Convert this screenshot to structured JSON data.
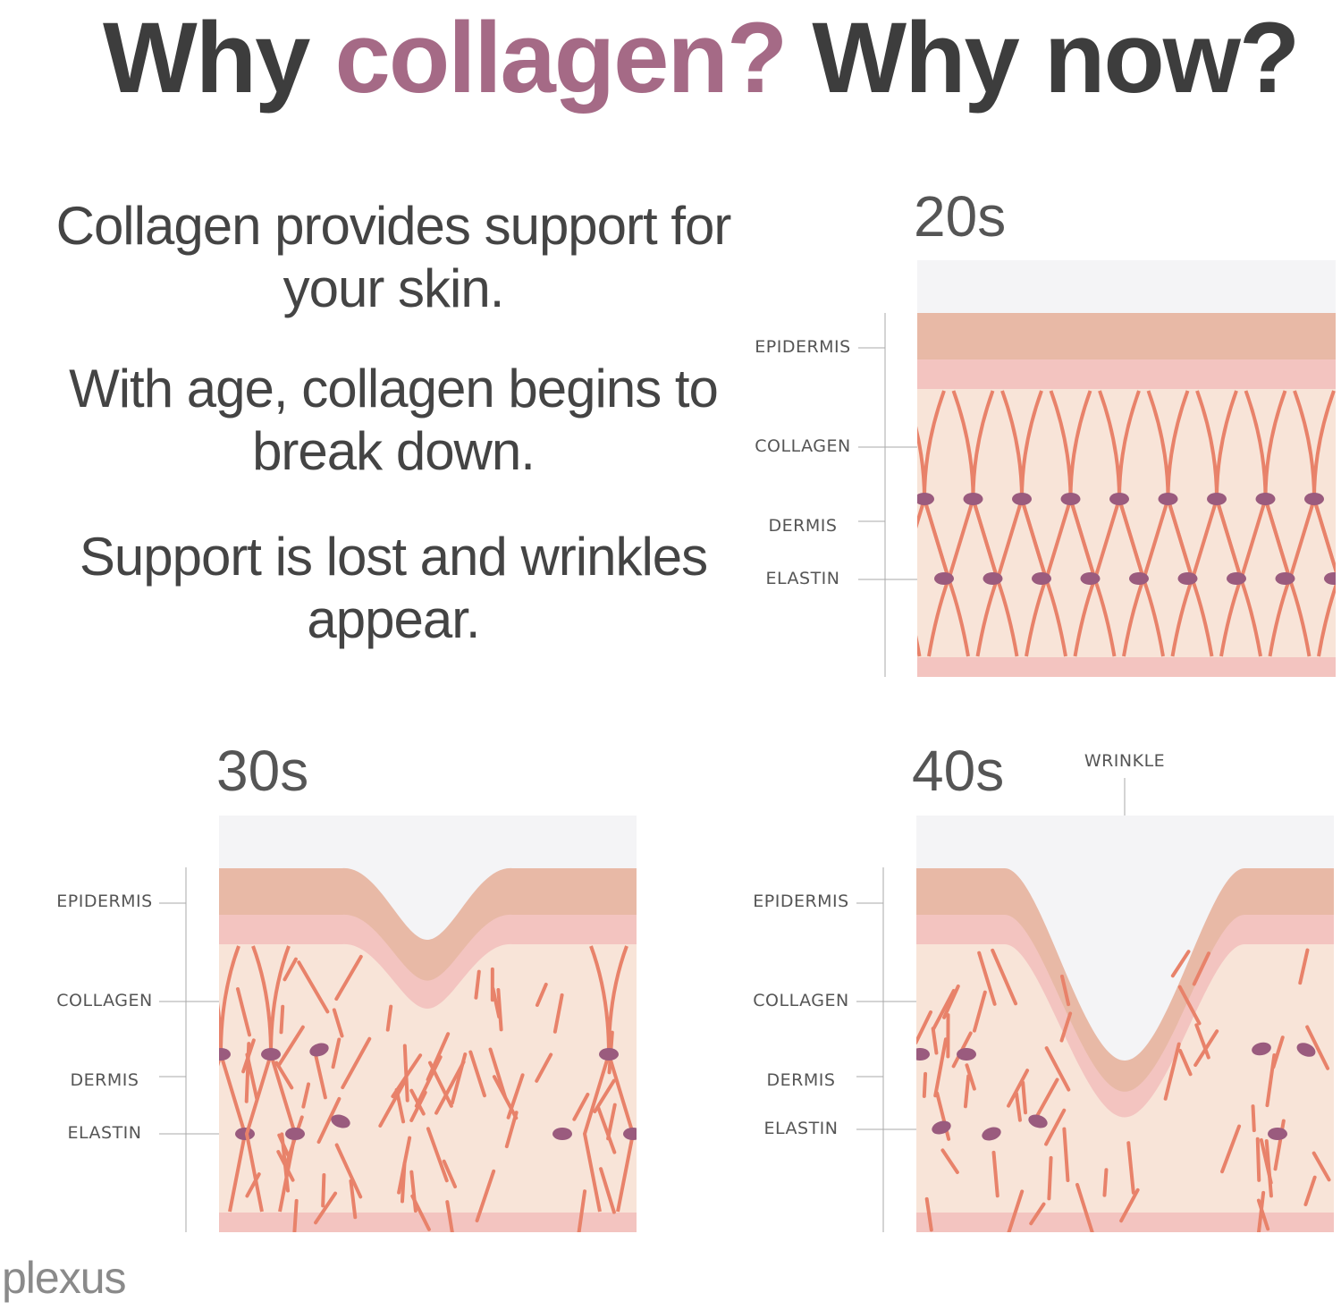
{
  "title": {
    "part1": "Why ",
    "accent": "collagen?",
    "part2": " Why now?"
  },
  "intro": [
    "Collagen provides support for your skin.",
    "With age, collagen begins to break down.",
    "Support is lost and wrinkles appear."
  ],
  "panels": [
    {
      "age": "20s",
      "labels": [
        "EPIDERMIS",
        "COLLAGEN",
        "DERMIS",
        "ELASTIN"
      ]
    },
    {
      "age": "30s",
      "labels": [
        "EPIDERMIS",
        "COLLAGEN",
        "DERMIS",
        "ELASTIN"
      ]
    },
    {
      "age": "40s",
      "labels": [
        "EPIDERMIS",
        "COLLAGEN",
        "DERMIS",
        "ELASTIN"
      ],
      "wrinkle_label": "WRINKLE"
    }
  ],
  "colors": {
    "title": "#3d3d3d",
    "accent": "#a56a86",
    "epidermis": "#e8b9a6",
    "basal": "#f3c4c0",
    "dermis": "#f8e4d8",
    "collagen": "#e8826a",
    "elastin": "#9a5b7e",
    "sky": "#f4f4f6"
  },
  "logo": "plexus"
}
